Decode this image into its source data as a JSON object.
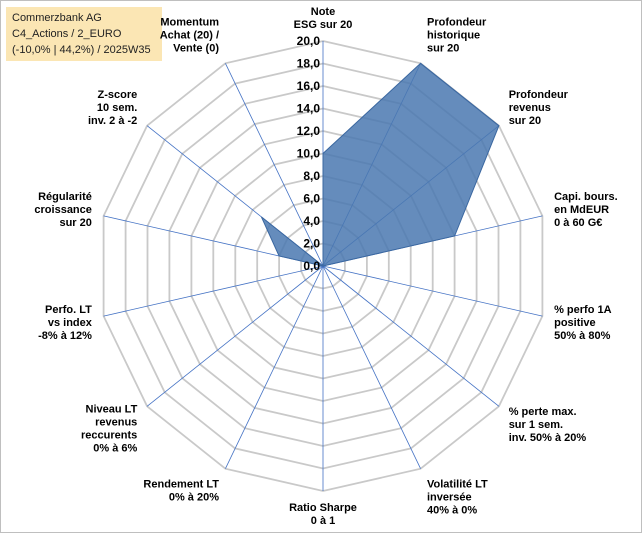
{
  "header": {
    "company": "Commerzbank AG",
    "category": "C4_Actions / 2_EURO",
    "stats": "(-10,0% | 44,2%) / 2025W35"
  },
  "chart_data": {
    "type": "radar",
    "r_min": 0,
    "r_max": 20,
    "r_step": 2,
    "r_tick_labels": [
      "0,0",
      "2,0",
      "4,0",
      "6,0",
      "8,0",
      "10,0",
      "12,0",
      "14,0",
      "16,0",
      "18,0",
      "20,0"
    ],
    "axes": [
      {
        "label": [
          "Note",
          "ESG sur 20"
        ],
        "value": 10.0
      },
      {
        "label": [
          "Profondeur",
          "historique",
          "sur 20"
        ],
        "value": 20.0
      },
      {
        "label": [
          "Profondeur",
          "revenus",
          "sur 20"
        ],
        "value": 20.0
      },
      {
        "label": [
          "Capi. bours.",
          "en MdEUR",
          "0 à 60 G€"
        ],
        "value": 12.0
      },
      {
        "label": [
          "% perfo 1A",
          "positive",
          "50% à 80%"
        ],
        "value": 0.0
      },
      {
        "label": [
          "% perte max.",
          "sur 1 sem.",
          "inv. 50% à 20%"
        ],
        "value": 0.0
      },
      {
        "label": [
          "Volatilité LT",
          "inversée",
          "40% à 0%"
        ],
        "value": 0.0
      },
      {
        "label": [
          "Ratio Sharpe",
          "0 à 1"
        ],
        "value": 0.0
      },
      {
        "label": [
          "Rendement LT",
          "0% à 20%"
        ],
        "value": 0.0
      },
      {
        "label": [
          "Niveau LT",
          "revenus",
          "reccurents",
          "0% à 6%"
        ],
        "value": 0.0
      },
      {
        "label": [
          "Perfo. LT",
          "vs index",
          "-8% à 12%"
        ],
        "value": 0.0
      },
      {
        "label": [
          "Régularité",
          "croissance",
          "sur 20"
        ],
        "value": 4.0
      },
      {
        "label": [
          "Z-score",
          "10 sem.",
          "inv. 2 à -2"
        ],
        "value": 7.0
      },
      {
        "label": [
          "Momentum",
          "Achat (20) /",
          "Vente (0)"
        ],
        "value": 0.0
      }
    ],
    "colors": {
      "fill": "#4a78b0",
      "stroke": "#3a67a0",
      "grid": "#c9c9c9",
      "spoke": "#4472c4",
      "text": "#000000"
    }
  }
}
